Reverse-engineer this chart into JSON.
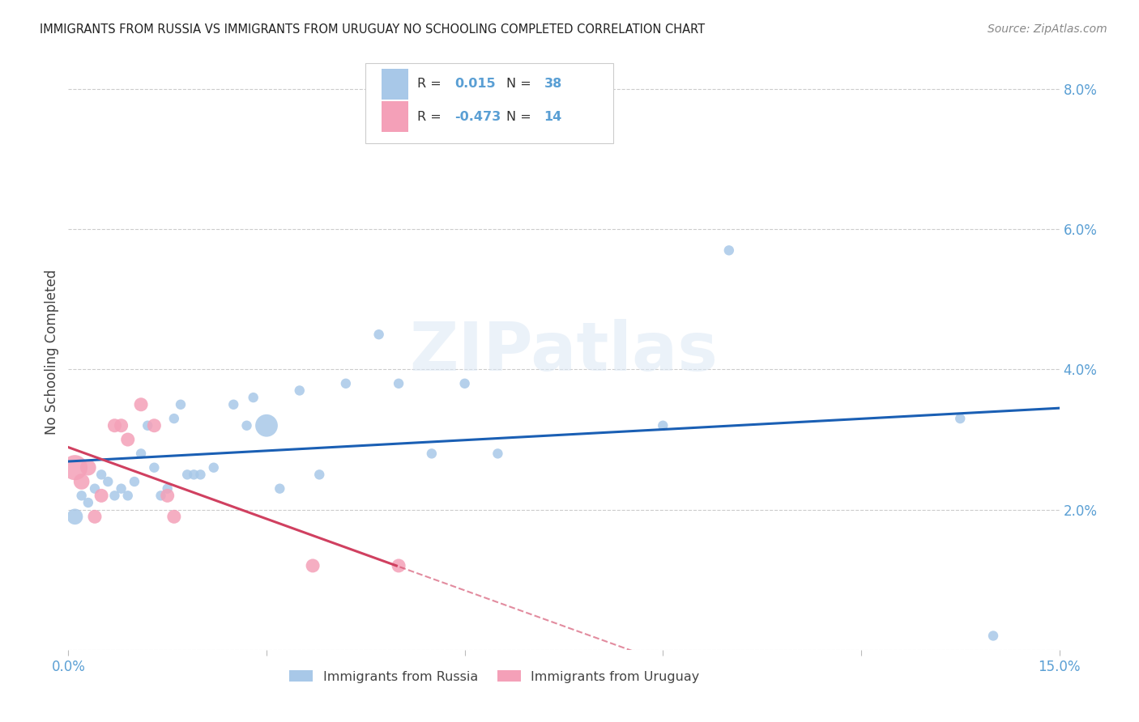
{
  "title": "IMMIGRANTS FROM RUSSIA VS IMMIGRANTS FROM URUGUAY NO SCHOOLING COMPLETED CORRELATION CHART",
  "source": "Source: ZipAtlas.com",
  "ylabel": "No Schooling Completed",
  "xlim": [
    0.0,
    0.15
  ],
  "ylim": [
    0.0,
    0.085
  ],
  "russia_R": "0.015",
  "russia_N": "38",
  "uruguay_R": "-0.473",
  "uruguay_N": "14",
  "russia_color": "#a8c8e8",
  "uruguay_color": "#f4a0b8",
  "russia_line_color": "#1a5fb4",
  "uruguay_line_color": "#d04060",
  "tick_color": "#5a9fd4",
  "watermark_color": "#dce8f5",
  "russia_x": [
    0.001,
    0.002,
    0.003,
    0.004,
    0.005,
    0.006,
    0.007,
    0.008,
    0.009,
    0.01,
    0.011,
    0.012,
    0.013,
    0.014,
    0.015,
    0.016,
    0.017,
    0.018,
    0.019,
    0.02,
    0.022,
    0.025,
    0.027,
    0.028,
    0.03,
    0.032,
    0.035,
    0.038,
    0.042,
    0.047,
    0.05,
    0.055,
    0.06,
    0.065,
    0.09,
    0.1,
    0.135,
    0.14
  ],
  "russia_y": [
    0.019,
    0.022,
    0.021,
    0.023,
    0.025,
    0.024,
    0.022,
    0.023,
    0.022,
    0.024,
    0.028,
    0.032,
    0.026,
    0.022,
    0.023,
    0.033,
    0.035,
    0.025,
    0.025,
    0.025,
    0.026,
    0.035,
    0.032,
    0.036,
    0.032,
    0.023,
    0.037,
    0.025,
    0.038,
    0.045,
    0.038,
    0.028,
    0.038,
    0.028,
    0.032,
    0.057,
    0.033,
    0.002
  ],
  "russia_sizes": [
    200,
    80,
    80,
    80,
    80,
    80,
    80,
    80,
    80,
    80,
    80,
    80,
    80,
    80,
    80,
    80,
    80,
    80,
    80,
    80,
    80,
    80,
    80,
    80,
    400,
    80,
    80,
    80,
    80,
    80,
    80,
    80,
    80,
    80,
    80,
    80,
    80,
    80
  ],
  "uruguay_x": [
    0.001,
    0.002,
    0.003,
    0.004,
    0.005,
    0.007,
    0.008,
    0.009,
    0.011,
    0.013,
    0.015,
    0.016,
    0.037,
    0.05
  ],
  "uruguay_y": [
    0.026,
    0.024,
    0.026,
    0.019,
    0.022,
    0.032,
    0.032,
    0.03,
    0.035,
    0.032,
    0.022,
    0.019,
    0.012,
    0.012
  ],
  "uruguay_sizes": [
    500,
    200,
    200,
    150,
    150,
    150,
    150,
    150,
    150,
    150,
    150,
    150,
    150,
    150
  ],
  "watermark": "ZIPatlas"
}
